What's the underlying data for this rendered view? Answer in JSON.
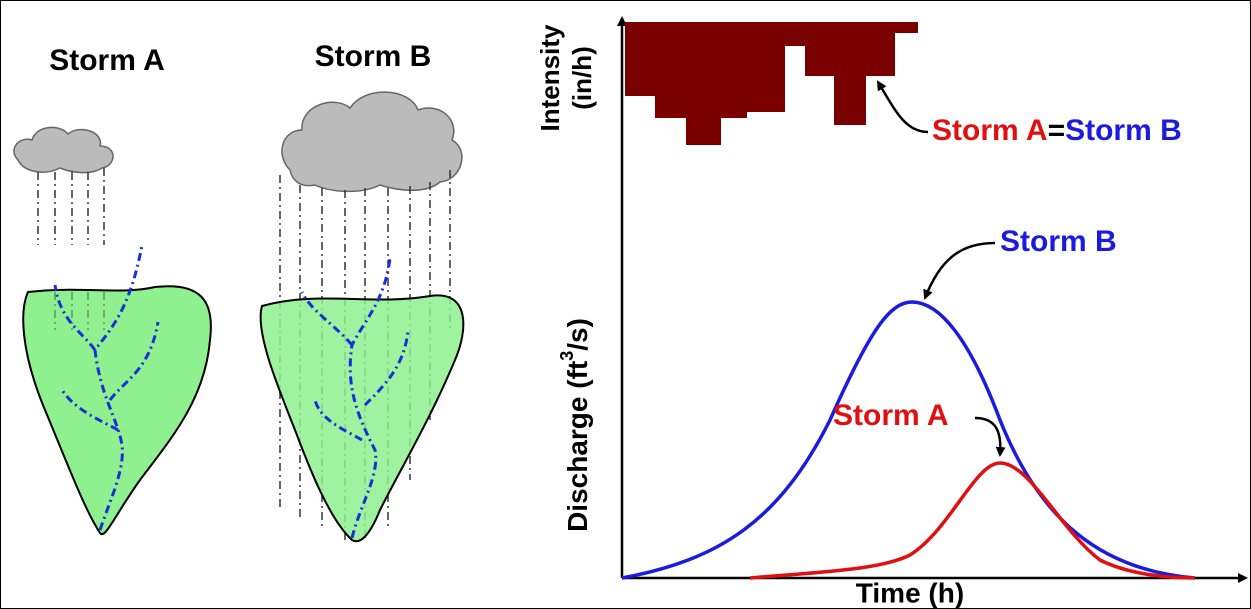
{
  "watersheds": {
    "storm_a": "Storm A",
    "storm_b": "Storm B"
  },
  "hydrograph": {
    "intensity_axis": {
      "line1": "Intensity",
      "line2": "(in/h)"
    },
    "discharge_axis": {
      "before": "Discharge (ft",
      "superscript": "3",
      "after": "/s)"
    },
    "time_axis": "Time (h)",
    "equal_note": {
      "left": "Storm A",
      "sign": "=",
      "right": "Storm B"
    },
    "curve_b_label": "Storm B",
    "curve_a_label": "Storm A"
  }
}
